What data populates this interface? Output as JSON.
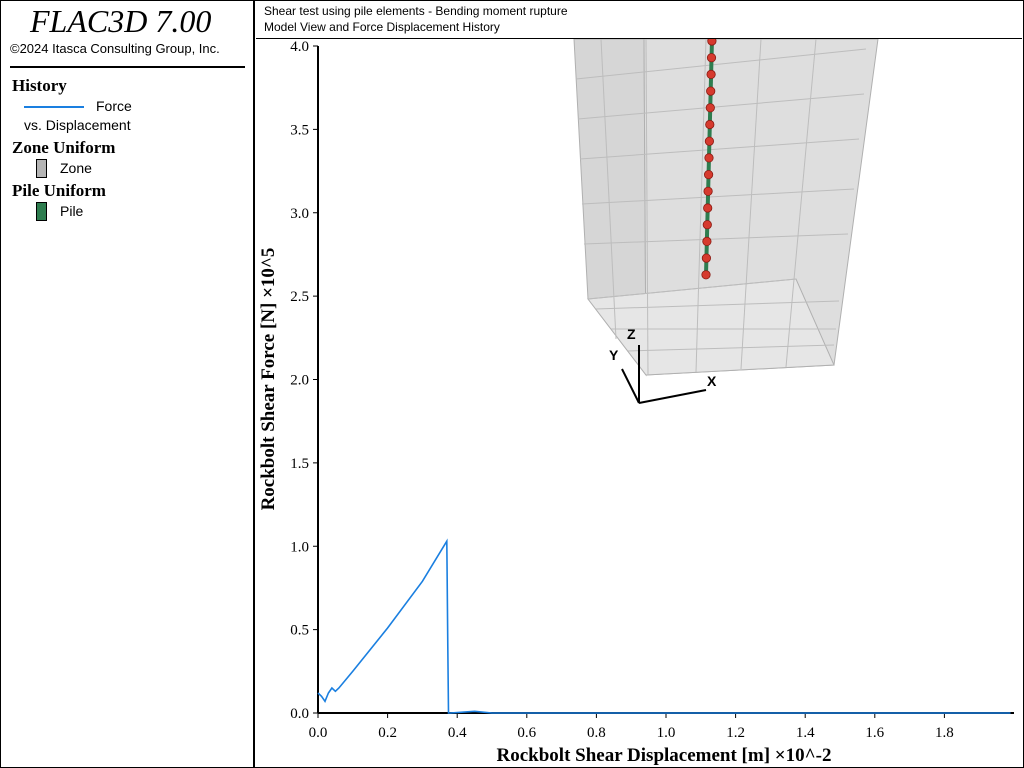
{
  "app": {
    "title": "FLAC3D 7.00",
    "copyright": "©2024 Itasca Consulting Group, Inc."
  },
  "header": {
    "line1": "Shear test using pile elements - Bending moment rupture",
    "line2": "Model View and Force Displacement History"
  },
  "legend": {
    "history": {
      "heading": "History",
      "entry_name": "Force",
      "entry_sub": "vs. Displacement",
      "color": "#1a7fe0"
    },
    "zone": {
      "heading": "Zone Uniform",
      "label": "Zone",
      "color": "#b4b4b4"
    },
    "pile": {
      "heading": "Pile Uniform",
      "label": "Pile",
      "color": "#2e7d4f"
    }
  },
  "axes_triad": {
    "z": "Z",
    "y": "Y",
    "x": "X"
  },
  "chart_data": {
    "type": "line",
    "xlabel": "Rockbolt Shear Displacement [m] ×10^-2",
    "ylabel": "Rockbolt Shear Force [N] ×10^5",
    "xlim": [
      0,
      2.0
    ],
    "ylim": [
      0,
      4.0
    ],
    "xticks": [
      "0.0",
      "0.2",
      "0.4",
      "0.6",
      "0.8",
      "1.0",
      "1.2",
      "1.4",
      "1.6",
      "1.8"
    ],
    "xtick_values": [
      0,
      0.2,
      0.4,
      0.6,
      0.8,
      1.0,
      1.2,
      1.4,
      1.6,
      1.8
    ],
    "yticks": [
      "0.0",
      "0.5",
      "1.0",
      "1.5",
      "2.0",
      "2.5",
      "3.0",
      "3.5",
      "4.0"
    ],
    "ytick_values": [
      0,
      0.5,
      1.0,
      1.5,
      2.0,
      2.5,
      3.0,
      3.5,
      4.0
    ],
    "grid": false,
    "series": [
      {
        "name": "Force vs. Displacement",
        "x": [
          0.0,
          0.01,
          0.02,
          0.03,
          0.04,
          0.05,
          0.06,
          0.1,
          0.2,
          0.3,
          0.37,
          0.371,
          0.373,
          0.375,
          0.38,
          0.45,
          0.5,
          0.6,
          0.8,
          1.0,
          1.2,
          1.4,
          1.6,
          1.8,
          1.99
        ],
        "y": [
          0.12,
          0.1,
          0.07,
          0.12,
          0.15,
          0.13,
          0.15,
          0.25,
          0.51,
          0.79,
          1.03,
          0.85,
          0.4,
          0.0,
          0.0,
          0.01,
          0.0,
          0.0,
          0.0,
          0.0,
          0.0,
          0.0,
          0.0,
          0.0,
          0.0
        ]
      }
    ]
  }
}
